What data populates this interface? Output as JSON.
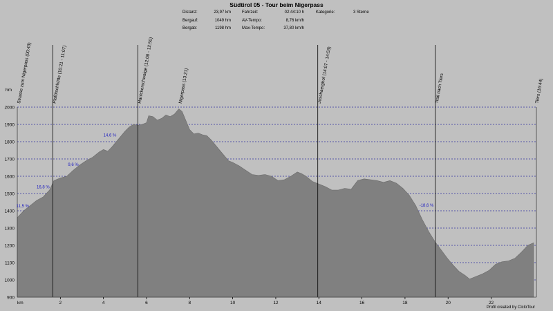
{
  "header": {
    "title": "Südtirol 05 - Tour beim Nigerpass",
    "stats": [
      {
        "label": "Distanz:",
        "value": "23,97 km"
      },
      {
        "label": "Bergauf:",
        "value": "1049 hm"
      },
      {
        "label": "Bergab:",
        "value": "1198 hm"
      },
      {
        "label": "Fahrzeit:",
        "value": "02:44:10 h"
      },
      {
        "label": "AV-Tempo:",
        "value": "8,76 km/h"
      },
      {
        "label": "Max-Tempo:",
        "value": "37,80 km/h"
      },
      {
        "label": "Kategorie:",
        "value": "3 Sterne"
      }
    ]
  },
  "footer": "Profil created by CicloTour",
  "chart_data": {
    "type": "area",
    "xlabel": "km",
    "ylabel": "hm",
    "xlim": [
      0,
      24.1
    ],
    "ylim": [
      900,
      2000
    ],
    "xticks": [
      2,
      4,
      6,
      8,
      10,
      12,
      14,
      16,
      18,
      20,
      22
    ],
    "yticks": [
      900,
      1000,
      1100,
      1200,
      1300,
      1400,
      1500,
      1600,
      1700,
      1800,
      1900,
      2000
    ],
    "grid": true,
    "fill_color": "#808080",
    "grid_color": "#3030a0",
    "label_color": "#2020c0",
    "x": [
      0,
      0.3,
      0.6,
      0.9,
      1.2,
      1.5,
      1.7,
      2.0,
      2.3,
      2.6,
      2.9,
      3.2,
      3.5,
      3.8,
      4.0,
      4.2,
      4.4,
      4.6,
      4.8,
      5.0,
      5.2,
      5.4,
      5.6,
      5.8,
      6.0,
      6.1,
      6.3,
      6.5,
      6.7,
      6.9,
      7.1,
      7.3,
      7.5,
      7.65,
      7.8,
      8.0,
      8.2,
      8.4,
      8.6,
      8.8,
      9.0,
      9.2,
      9.4,
      9.6,
      9.8,
      10.0,
      10.3,
      10.6,
      10.9,
      11.2,
      11.5,
      11.8,
      12.1,
      12.4,
      12.7,
      13.0,
      13.2,
      13.4,
      13.7,
      14.0,
      14.3,
      14.6,
      14.9,
      15.2,
      15.5,
      15.8,
      16.1,
      16.4,
      16.7,
      17.0,
      17.3,
      17.6,
      17.9,
      18.2,
      18.5,
      18.8,
      19.1,
      19.4,
      19.7,
      20.0,
      20.2,
      20.5,
      20.8,
      21.0,
      21.3,
      21.6,
      21.9,
      22.2,
      22.5,
      22.8,
      23.1,
      23.4,
      23.7,
      23.97
    ],
    "values": [
      1360,
      1400,
      1430,
      1460,
      1480,
      1520,
      1575,
      1590,
      1600,
      1635,
      1665,
      1690,
      1710,
      1740,
      1755,
      1745,
      1770,
      1800,
      1830,
      1860,
      1885,
      1900,
      1895,
      1900,
      1910,
      1950,
      1945,
      1925,
      1935,
      1955,
      1945,
      1960,
      1990,
      1975,
      1930,
      1870,
      1845,
      1850,
      1840,
      1835,
      1810,
      1780,
      1750,
      1720,
      1690,
      1680,
      1660,
      1635,
      1610,
      1605,
      1610,
      1600,
      1575,
      1580,
      1600,
      1625,
      1615,
      1600,
      1570,
      1555,
      1540,
      1520,
      1520,
      1530,
      1525,
      1575,
      1585,
      1580,
      1575,
      1565,
      1575,
      1560,
      1530,
      1490,
      1430,
      1350,
      1280,
      1220,
      1170,
      1120,
      1090,
      1050,
      1025,
      1005,
      1020,
      1035,
      1055,
      1090,
      1105,
      1110,
      1125,
      1160,
      1200,
      1215
    ],
    "waypoints": [
      {
        "km": 0.0,
        "label": "Strasse zum Nigerpass (00:43)",
        "line": false
      },
      {
        "km": 1.65,
        "label": "Plafötschhütte (10:21 - 11:07)",
        "line": true
      },
      {
        "km": 5.6,
        "label": "Hanickerschwaige (12:08 - 12:50)",
        "line": true
      },
      {
        "km": 7.5,
        "label": "Nigerpass (13:21)",
        "line": false
      },
      {
        "km": 13.95,
        "label": "Joschaerghof (14:07 - 14:53)",
        "line": true
      },
      {
        "km": 19.4,
        "label": "Trail nach Tiers",
        "line": true
      },
      {
        "km": 24.05,
        "label": "Tiers (16:44)",
        "line": false
      }
    ],
    "grade_labels": [
      {
        "km": 0.25,
        "hm": 1420,
        "text": "11,5 %"
      },
      {
        "km": 1.2,
        "hm": 1530,
        "text": "16,8 %"
      },
      {
        "km": 2.6,
        "hm": 1660,
        "text": "9,6 %"
      },
      {
        "km": 4.3,
        "hm": 1830,
        "text": "14,6 %"
      },
      {
        "km": 19.0,
        "hm": 1425,
        "text": "-18,6 %"
      }
    ]
  }
}
